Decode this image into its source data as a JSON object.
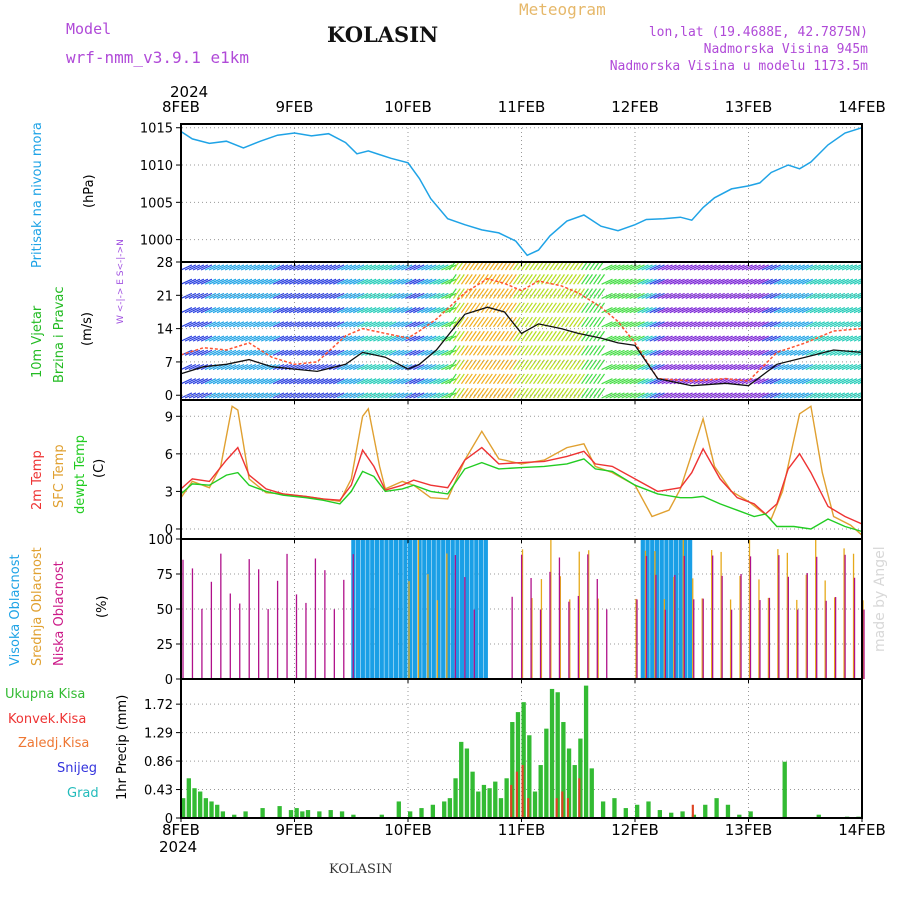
{
  "header": {
    "model_label": "Model",
    "model_name": "wrf-nmm_v3.9.1 e1km",
    "title": "KOLASIN",
    "subtitle": "Meteogram",
    "coords": "lon,lat (19.4688E, 42.7875N)",
    "elevation": "Nadmorska Visina 945m",
    "model_elevation": "Nadmorska Visina u modelu 1173.5m"
  },
  "footer": {
    "location": "KOLASIN",
    "credit": "made by Angel"
  },
  "time_axis": {
    "year": "2024",
    "ticks": [
      "8FEB",
      "9FEB",
      "10FEB",
      "11FEB",
      "12FEB",
      "13FEB",
      "14FEB"
    ]
  },
  "labels": {
    "pressure": {
      "name": "Pritisak na nivou mora",
      "unit": "(hPa)"
    },
    "wind": {
      "name1": "10m Vjetar",
      "name2": "Brzina i Pravac",
      "unit": "(m/s)",
      "compass": "W <-|-> E  S<-|->N"
    },
    "temp": {
      "t2m": "2m Temp",
      "sfc": "SFC Temp",
      "dewpt": "dewpt Temp",
      "unit": "(C)"
    },
    "cloud": {
      "high": "Visoka Oblacnost",
      "mid": "Srednja Oblacnost",
      "low": "Niska Oblacnost",
      "unit": "(%)"
    },
    "precip": {
      "total": "Ukupna Kisa",
      "conv": "Konvek.Kisa",
      "frozen": "Zaledj.Kisa",
      "snow": "Snijeg",
      "graupel": "Grad",
      "unit": "1hr Precip (mm)"
    }
  },
  "colors": {
    "pressure": "#1fa3e6",
    "t2m": "#ee3333",
    "sfc": "#e0a030",
    "dewpt": "#22cc22",
    "high_cloud": "#1a9fe6",
    "mid_cloud": "#e6a91a",
    "low_cloud": "#b0108a",
    "precip_total": "#33bb33",
    "precip_conv": "#dd4422",
    "snow": "#3333dd",
    "graupel": "#22bbbb",
    "wind_speed": "#111111",
    "gust": "#ff5533",
    "grid": "#999999"
  },
  "chart_data": [
    {
      "type": "line",
      "panel": "pressure",
      "ylabel": "(hPa)",
      "ylim": [
        997,
        1015.5
      ],
      "yticks": [
        "1015",
        "1010",
        "1005",
        "1000"
      ],
      "x_days": [
        0,
        0.1,
        0.25,
        0.4,
        0.55,
        0.7,
        0.85,
        1.0,
        1.15,
        1.3,
        1.45,
        1.55,
        1.65,
        1.75,
        1.85,
        2.0,
        2.1,
        2.2,
        2.35,
        2.5,
        2.65,
        2.8,
        2.95,
        3.05,
        3.15,
        3.25,
        3.4,
        3.55,
        3.7,
        3.85,
        4.0,
        4.1,
        4.25,
        4.4,
        4.5,
        4.6,
        4.7,
        4.85,
        5.0,
        5.1,
        5.2,
        5.35,
        5.45,
        5.55,
        5.7,
        5.85,
        6.0
      ],
      "values": [
        1014.5,
        1013.5,
        1012.9,
        1013.2,
        1012.3,
        1013.2,
        1014.0,
        1014.3,
        1013.9,
        1014.2,
        1013.0,
        1011.5,
        1011.9,
        1011.4,
        1010.9,
        1010.3,
        1008.2,
        1005.5,
        1002.8,
        1002.0,
        1001.3,
        1000.9,
        999.8,
        997.9,
        998.6,
        1000.5,
        1002.5,
        1003.3,
        1001.8,
        1001.2,
        1002.0,
        1002.7,
        1002.8,
        1003.0,
        1002.6,
        1004.3,
        1005.6,
        1006.8,
        1007.2,
        1007.6,
        1009.0,
        1010.0,
        1009.5,
        1010.4,
        1012.7,
        1014.3,
        1015.0
      ]
    },
    {
      "type": "line",
      "panel": "wind",
      "ylabel": "(m/s)",
      "ylim": [
        -1,
        28
      ],
      "yticks": [
        "28",
        "21",
        "14",
        "7",
        "0"
      ],
      "series": [
        {
          "name": "wind_speed",
          "x_days": [
            0,
            0.2,
            0.4,
            0.6,
            0.8,
            1.0,
            1.2,
            1.45,
            1.6,
            1.8,
            2.0,
            2.1,
            2.25,
            2.5,
            2.7,
            2.85,
            3.0,
            3.15,
            3.35,
            3.5,
            3.7,
            3.85,
            4.0,
            4.2,
            4.5,
            4.8,
            5.0,
            5.25,
            5.5,
            5.75,
            6.0
          ],
          "values": [
            4.5,
            6.0,
            6.5,
            7.5,
            6.0,
            5.5,
            5.0,
            6.5,
            9.0,
            8.0,
            5.5,
            6.5,
            9.5,
            17.0,
            18.5,
            17.5,
            13.0,
            15.0,
            14.0,
            13.0,
            12.0,
            11.0,
            10.5,
            3.5,
            2.0,
            2.5,
            2.0,
            6.5,
            8.0,
            9.5,
            9.0
          ]
        },
        {
          "name": "gust",
          "x_days": [
            0,
            0.2,
            0.4,
            0.6,
            0.8,
            1.0,
            1.2,
            1.45,
            1.6,
            1.8,
            2.0,
            2.1,
            2.25,
            2.5,
            2.7,
            2.85,
            3.0,
            3.15,
            3.35,
            3.5,
            3.7,
            3.85,
            4.0,
            4.2,
            4.5,
            4.8,
            5.0,
            5.25,
            5.5,
            5.75,
            6.0
          ],
          "values": [
            8.5,
            10.0,
            9.5,
            11.0,
            8.0,
            6.5,
            7.0,
            12.5,
            14.0,
            13.0,
            12.0,
            13.5,
            16.0,
            21.5,
            24.5,
            23.5,
            22.0,
            24.0,
            23.0,
            21.5,
            18.5,
            15.5,
            11.0,
            3.5,
            3.0,
            3.5,
            3.0,
            9.0,
            11.0,
            13.5,
            14.0
          ]
        }
      ]
    },
    {
      "type": "line",
      "panel": "temperature",
      "ylabel": "(C)",
      "ylim": [
        -0.8,
        10.3
      ],
      "yticks": [
        "9",
        "6",
        "3",
        "0"
      ],
      "series": [
        {
          "name": "2m Temp",
          "x_days": [
            0,
            0.1,
            0.25,
            0.4,
            0.5,
            0.6,
            0.75,
            0.9,
            1.1,
            1.25,
            1.4,
            1.5,
            1.6,
            1.7,
            1.8,
            1.95,
            2.05,
            2.2,
            2.35,
            2.5,
            2.65,
            2.8,
            3.0,
            3.2,
            3.4,
            3.55,
            3.65,
            3.8,
            4.0,
            4.2,
            4.4,
            4.5,
            4.6,
            4.75,
            4.9,
            5.05,
            5.15,
            5.25,
            5.35,
            5.45,
            5.55,
            5.7,
            5.85,
            6.0
          ],
          "values": [
            3.2,
            4.0,
            3.8,
            5.5,
            6.5,
            4.3,
            3.2,
            2.8,
            2.6,
            2.4,
            2.3,
            3.5,
            6.3,
            5.0,
            3.1,
            3.5,
            3.9,
            3.5,
            3.3,
            5.5,
            6.5,
            5.2,
            5.3,
            5.4,
            5.8,
            6.2,
            5.2,
            5.0,
            4.0,
            3.0,
            3.3,
            4.5,
            6.4,
            4.0,
            2.5,
            2.0,
            1.2,
            2.0,
            4.8,
            6.0,
            4.5,
            1.8,
            1.0,
            0.4
          ]
        },
        {
          "name": "SFC Temp",
          "x_days": [
            0,
            0.1,
            0.25,
            0.35,
            0.45,
            0.5,
            0.55,
            0.6,
            0.75,
            0.9,
            1.1,
            1.25,
            1.4,
            1.5,
            1.6,
            1.65,
            1.75,
            1.8,
            1.95,
            2.05,
            2.2,
            2.35,
            2.5,
            2.65,
            2.8,
            3.0,
            3.2,
            3.4,
            3.55,
            3.65,
            3.8,
            4.0,
            4.15,
            4.3,
            4.4,
            4.5,
            4.6,
            4.7,
            4.85,
            5.0,
            5.1,
            5.2,
            5.3,
            5.45,
            5.55,
            5.65,
            5.75,
            5.9,
            6.0
          ],
          "values": [
            2.5,
            3.8,
            3.3,
            5.0,
            9.8,
            9.5,
            6.8,
            4.0,
            2.9,
            2.8,
            2.6,
            2.4,
            2.2,
            4.0,
            9.0,
            9.6,
            5.0,
            3.2,
            3.8,
            3.5,
            2.5,
            2.4,
            5.5,
            7.8,
            5.6,
            5.2,
            5.5,
            6.5,
            6.8,
            5.0,
            4.5,
            3.5,
            1.0,
            1.5,
            3.2,
            6.0,
            8.8,
            5.0,
            3.0,
            2.2,
            1.5,
            0.8,
            3.0,
            9.2,
            9.8,
            4.5,
            1.0,
            0.3,
            -0.5
          ]
        },
        {
          "name": "dewpt Temp",
          "x_days": [
            0,
            0.1,
            0.25,
            0.4,
            0.5,
            0.6,
            0.75,
            0.9,
            1.1,
            1.25,
            1.4,
            1.5,
            1.6,
            1.7,
            1.8,
            1.95,
            2.05,
            2.2,
            2.35,
            2.5,
            2.65,
            2.8,
            3.0,
            3.2,
            3.4,
            3.55,
            3.65,
            3.8,
            4.0,
            4.2,
            4.4,
            4.5,
            4.6,
            4.75,
            4.9,
            5.05,
            5.15,
            5.25,
            5.4,
            5.55,
            5.7,
            5.85,
            6.0
          ],
          "values": [
            2.8,
            3.6,
            3.5,
            4.3,
            4.5,
            3.5,
            3.0,
            2.7,
            2.5,
            2.3,
            2.0,
            3.0,
            4.6,
            4.2,
            3.0,
            3.2,
            3.5,
            3.0,
            2.8,
            4.8,
            5.3,
            4.8,
            4.9,
            5.0,
            5.2,
            5.6,
            4.8,
            4.6,
            3.5,
            2.8,
            2.5,
            2.5,
            2.6,
            2.0,
            1.5,
            1.0,
            1.2,
            0.2,
            0.2,
            0.0,
            0.8,
            0.2,
            -0.2
          ]
        }
      ]
    },
    {
      "type": "bar",
      "panel": "cloud",
      "ylabel": "(%)",
      "ylim": [
        0,
        100
      ],
      "yticks": [
        "100",
        "75",
        "50",
        "25",
        "0"
      ],
      "series": [
        {
          "name": "Visoka Oblacnost",
          "segments_days": [
            [
              1.5,
              2.7
            ],
            [
              4.05,
              4.5
            ]
          ],
          "value": 100
        },
        {
          "name": "Srednja Oblacnost",
          "segments_days": [
            [
              2.0,
              2.4
            ],
            [
              3.0,
              3.7
            ],
            [
              4.0,
              6.0
            ]
          ],
          "value": 100
        },
        {
          "name": "Niska Oblacnost",
          "segments_days": [
            [
              0.0,
              1.5
            ],
            [
              2.4,
              2.6
            ],
            [
              2.9,
              3.8
            ],
            [
              4.0,
              6.0
            ]
          ],
          "value": 90
        }
      ]
    },
    {
      "type": "bar",
      "panel": "precipitation",
      "ylabel": "1hr Precip (mm)",
      "ylim": [
        0,
        2.1
      ],
      "yticks": [
        "1.72",
        "1.29",
        "0.86",
        "0.43",
        "0"
      ],
      "series": [
        {
          "name": "Ukupna Kisa",
          "x_days": [
            0.0,
            0.05,
            0.1,
            0.15,
            0.2,
            0.25,
            0.3,
            0.35,
            0.45,
            0.55,
            0.7,
            0.85,
            0.95,
            1.0,
            1.05,
            1.1,
            1.2,
            1.3,
            1.4,
            1.5,
            1.6,
            1.75,
            1.9,
            2.0,
            2.1,
            2.2,
            2.3,
            2.35,
            2.4,
            2.45,
            2.5,
            2.55,
            2.6,
            2.65,
            2.7,
            2.75,
            2.8,
            2.85,
            2.9,
            2.95,
            3.0,
            3.05,
            3.1,
            3.15,
            3.2,
            3.25,
            3.3,
            3.35,
            3.4,
            3.45,
            3.5,
            3.55,
            3.6,
            3.7,
            3.8,
            3.9,
            4.0,
            4.1,
            4.2,
            4.3,
            4.4,
            4.5,
            4.55,
            4.6,
            4.7,
            4.8,
            4.9,
            5.0,
            5.3,
            5.6,
            5.85,
            5.95
          ],
          "values": [
            0.3,
            0.6,
            0.45,
            0.4,
            0.3,
            0.25,
            0.2,
            0.1,
            0.05,
            0.1,
            0.15,
            0.18,
            0.12,
            0.15,
            0.1,
            0.12,
            0.1,
            0.12,
            0.1,
            0.05,
            0.0,
            0.05,
            0.25,
            0.1,
            0.15,
            0.2,
            0.25,
            0.3,
            0.6,
            1.15,
            1.05,
            0.7,
            0.4,
            0.5,
            0.45,
            0.55,
            0.3,
            0.6,
            1.45,
            1.6,
            1.75,
            1.25,
            0.4,
            0.8,
            1.35,
            1.95,
            1.9,
            1.45,
            1.05,
            0.8,
            1.2,
            2.0,
            0.75,
            0.25,
            0.3,
            0.15,
            0.2,
            0.25,
            0.12,
            0.08,
            0.1,
            0.05,
            0.0,
            0.2,
            0.3,
            0.2,
            0.05,
            0.1,
            0.85,
            0.05,
            0.02,
            0.02
          ]
        },
        {
          "name": "Konvek.Kisa",
          "x_days": [
            2.9,
            2.95,
            3.0,
            3.05,
            3.3,
            3.35,
            3.4,
            3.5,
            4.5
          ],
          "values": [
            0.5,
            0.7,
            0.8,
            0.3,
            0.3,
            0.4,
            0.3,
            0.6,
            0.2
          ]
        }
      ]
    }
  ]
}
